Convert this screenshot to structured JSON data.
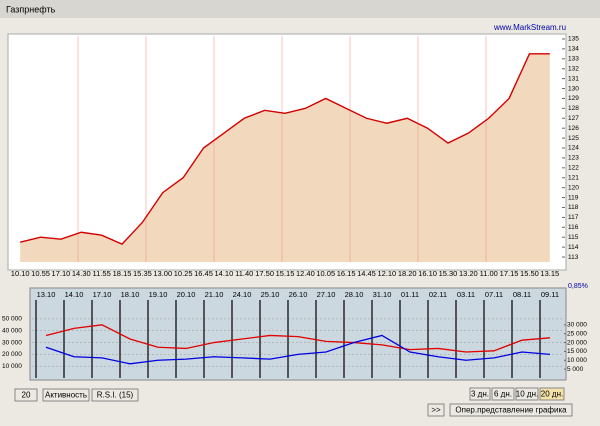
{
  "window": {
    "title": "Газпрнефть",
    "site": "www.MarkStream.ru",
    "percent": "0,85%",
    "buttons_left": [
      "20",
      "Активность",
      "R.S.I. (15)"
    ],
    "buttons_days": [
      "3 дн.",
      "6 дн.",
      "10 дн.",
      "20 дн."
    ],
    "button_next": ">>",
    "button_mode": "Опер.представление графика"
  },
  "chart_data": [
    {
      "type": "area",
      "color": "#d40000",
      "fill": "#f2d8bd",
      "categories": [
        "10.10",
        "10.55",
        "17.10",
        "14.30",
        "11.55",
        "18.15",
        "15.35",
        "13.00",
        "10.25",
        "16.45",
        "14.10",
        "11.40",
        "17.50",
        "15.15",
        "12.40",
        "10.05",
        "16.15",
        "14.45",
        "12.10",
        "18.20",
        "16.10",
        "15.30",
        "13.20",
        "11.00",
        "17.15",
        "15.50",
        "13.15"
      ],
      "values": [
        114.5,
        115,
        114.8,
        115.5,
        115.2,
        114.3,
        116.5,
        119.5,
        121,
        124,
        125.5,
        127,
        127.8,
        127.5,
        128,
        129,
        128,
        127,
        126.5,
        127,
        126,
        124.5,
        125.5,
        127,
        129,
        133.5,
        133.5
      ],
      "ylim": [
        112.5,
        135.3
      ],
      "yticks": [
        113,
        114,
        115,
        116,
        117,
        118,
        119,
        120,
        121,
        122,
        123,
        124,
        125,
        126,
        127,
        128,
        129,
        130,
        131,
        132,
        133,
        134,
        135
      ]
    },
    {
      "type": "line",
      "categories": [
        "13.10",
        "14.10",
        "17.10",
        "18.10",
        "19.10",
        "20.10",
        "21.10",
        "24.10",
        "25.10",
        "26.10",
        "27.10",
        "28.10",
        "31.10",
        "01.11",
        "02.11",
        "03.11",
        "07.11",
        "08.11",
        "09.11"
      ],
      "series": [
        {
          "name": "red",
          "color": "#e00000",
          "values": [
            36000,
            42000,
            45000,
            33000,
            26000,
            25000,
            30000,
            33000,
            36000,
            35000,
            31000,
            30000,
            28000,
            24000,
            25000,
            22000,
            23000,
            32000,
            34000
          ]
        },
        {
          "name": "blue",
          "color": "#0000e0",
          "values": [
            26000,
            18000,
            17000,
            12000,
            15000,
            16000,
            18000,
            17000,
            16000,
            20000,
            22000,
            30000,
            36000,
            22000,
            18000,
            15000,
            17000,
            22000,
            20000
          ]
        }
      ],
      "ylim": [
        0,
        66000
      ],
      "yticks": [
        {
          "value": 10000,
          "label": "10 000"
        },
        {
          "value": 20000,
          "label": "20 000"
        },
        {
          "value": 30000,
          "label": "30 000"
        },
        {
          "value": 40000,
          "label": "40 000"
        },
        {
          "value": 50000,
          "label": "50 000"
        }
      ],
      "y2lim": [
        0,
        44000
      ],
      "y2ticks": [
        {
          "value": 5000,
          "label": "5 000"
        },
        {
          "value": 10000,
          "label": "10 000"
        },
        {
          "value": 15000,
          "label": "15 000"
        },
        {
          "value": 20000,
          "label": "20 000"
        },
        {
          "value": 25000,
          "label": "25 000"
        },
        {
          "value": 30000,
          "label": "30 000"
        }
      ]
    }
  ]
}
